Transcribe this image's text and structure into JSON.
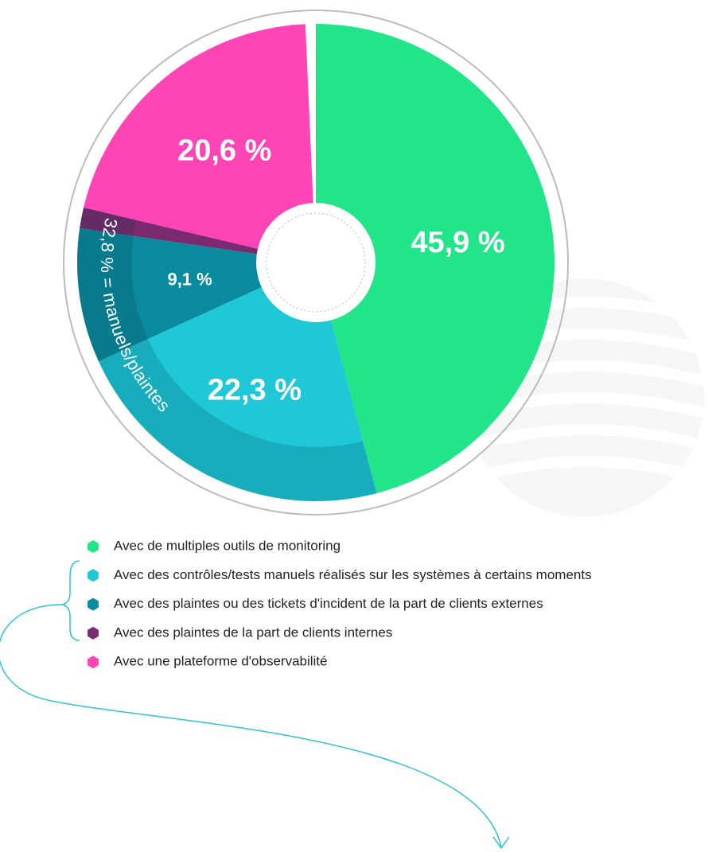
{
  "chart_data": {
    "type": "donut",
    "categories": [
      "Avec de multiples outils de monitoring",
      "Avec des contrôles/tests manuels réalisés sur les systèmes à certains moments",
      "Avec des plaintes ou des tickets d'incident de la part de clients externes",
      "Avec des plaintes de la part de clients internes",
      "Avec une plateforme d'observabilité"
    ],
    "values": [
      45.9,
      22.3,
      9.1,
      1.4,
      20.6
    ],
    "value_labels": [
      "45,9 %",
      "22,3 %",
      "9,1 %",
      null,
      "20,6 %"
    ],
    "colors": [
      "#22e589",
      "#1ec8d6",
      "#0a8a9e",
      "#7a2a6e",
      "#ff45b5"
    ],
    "annotation": "32,8 % = manuels/plaintes"
  }
}
